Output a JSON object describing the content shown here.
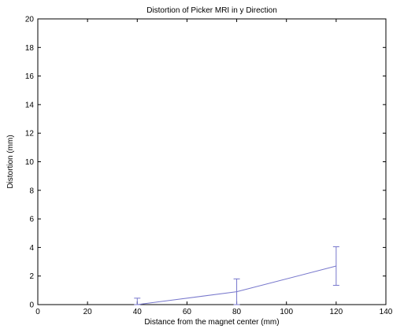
{
  "chart_data": {
    "type": "line",
    "title": "Distortion  of Picker MRI in y Direction",
    "xlabel": "Distance from the magnet center (mm)",
    "ylabel": "Distortion (mm)",
    "xlim": [
      0,
      140
    ],
    "ylim": [
      0,
      20
    ],
    "xticks": [
      "0",
      "20",
      "40",
      "60",
      "80",
      "100",
      "120",
      "140"
    ],
    "yticks": [
      "0",
      "2",
      "4",
      "6",
      "8",
      "10",
      "12",
      "14",
      "16",
      "18",
      "20"
    ],
    "grid": false,
    "series": [
      {
        "x": [
          40,
          80,
          120
        ],
        "y": [
          0.0,
          0.9,
          2.7
        ],
        "error_lower": [
          0.0,
          0.9,
          1.35
        ],
        "error_upper": [
          0.45,
          0.9,
          1.35
        ]
      }
    ],
    "line_color": "#7777cc"
  }
}
